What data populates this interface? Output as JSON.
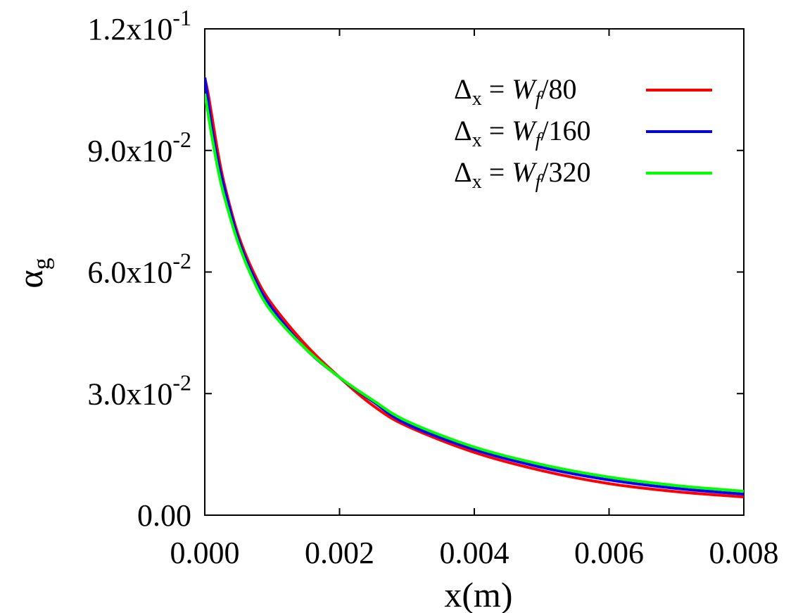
{
  "chart_data": {
    "type": "line",
    "title": "",
    "xlabel": "x(m)",
    "ylabel": "α_g",
    "ylabel_parts": {
      "base": "α",
      "sub": "g"
    },
    "xlim": [
      0,
      0.008
    ],
    "ylim": [
      0,
      0.12
    ],
    "xticks": [
      {
        "value": 0.0,
        "label": "0.000"
      },
      {
        "value": 0.002,
        "label": "0.002"
      },
      {
        "value": 0.004,
        "label": "0.004"
      },
      {
        "value": 0.006,
        "label": "0.006"
      },
      {
        "value": 0.008,
        "label": "0.008"
      }
    ],
    "yticks": [
      {
        "value": 0.0,
        "label": "0.00",
        "mantissa": "0.00",
        "exp": ""
      },
      {
        "value": 0.03,
        "label": "3.0x10^-2",
        "mantissa": "3.0x10",
        "exp": "-2"
      },
      {
        "value": 0.06,
        "label": "6.0x10^-2",
        "mantissa": "6.0x10",
        "exp": "-2"
      },
      {
        "value": 0.09,
        "label": "9.0x10^-2",
        "mantissa": "9.0x10",
        "exp": "-2"
      },
      {
        "value": 0.12,
        "label": "1.2x10^-1",
        "mantissa": "1.2x10",
        "exp": "-1"
      }
    ],
    "grid": false,
    "legend": "top-right",
    "series": [
      {
        "name": "Δx = Wf/80",
        "legend_parts": {
          "delta": "Δ",
          "sub": "x",
          "eq": " = ",
          "w": "W",
          "wsub": "f",
          "den": "/80"
        },
        "color": "#ff0000",
        "x": [
          0.0,
          5e-05,
          0.0001,
          0.0002,
          0.0003,
          0.0005,
          0.00075,
          0.001,
          0.0015,
          0.002,
          0.0025,
          0.003,
          0.004,
          0.005,
          0.006,
          0.007,
          0.008
        ],
        "y": [
          0.108,
          0.104,
          0.099,
          0.089,
          0.081,
          0.069,
          0.059,
          0.052,
          0.042,
          0.034,
          0.027,
          0.022,
          0.0155,
          0.011,
          0.0078,
          0.0058,
          0.0045
        ]
      },
      {
        "name": "Δx = Wf/160",
        "legend_parts": {
          "delta": "Δ",
          "sub": "x",
          "eq": " = ",
          "w": "W",
          "wsub": "f",
          "den": "/160"
        },
        "color": "#0000ff",
        "x": [
          0.0,
          5e-05,
          0.0001,
          0.0002,
          0.0003,
          0.0005,
          0.00075,
          0.001,
          0.0015,
          0.002,
          0.0025,
          0.003,
          0.004,
          0.005,
          0.006,
          0.007,
          0.008
        ],
        "y": [
          0.108,
          0.102,
          0.096,
          0.087,
          0.08,
          0.068,
          0.058,
          0.051,
          0.041,
          0.034,
          0.028,
          0.0225,
          0.0162,
          0.0118,
          0.0087,
          0.0066,
          0.0052
        ]
      },
      {
        "name": "Δx = Wf/320",
        "legend_parts": {
          "delta": "Δ",
          "sub": "x",
          "eq": " = ",
          "w": "W",
          "wsub": "f",
          "den": "/320"
        },
        "color": "#00ff00",
        "x": [
          0.0,
          5e-05,
          0.0001,
          0.0002,
          0.0003,
          0.0005,
          0.00075,
          0.001,
          0.0015,
          0.002,
          0.0025,
          0.003,
          0.004,
          0.005,
          0.006,
          0.007,
          0.008
        ],
        "y": [
          0.104,
          0.099,
          0.094,
          0.085,
          0.078,
          0.067,
          0.057,
          0.05,
          0.041,
          0.034,
          0.0283,
          0.0232,
          0.0168,
          0.0125,
          0.0094,
          0.0073,
          0.0059
        ]
      }
    ]
  }
}
